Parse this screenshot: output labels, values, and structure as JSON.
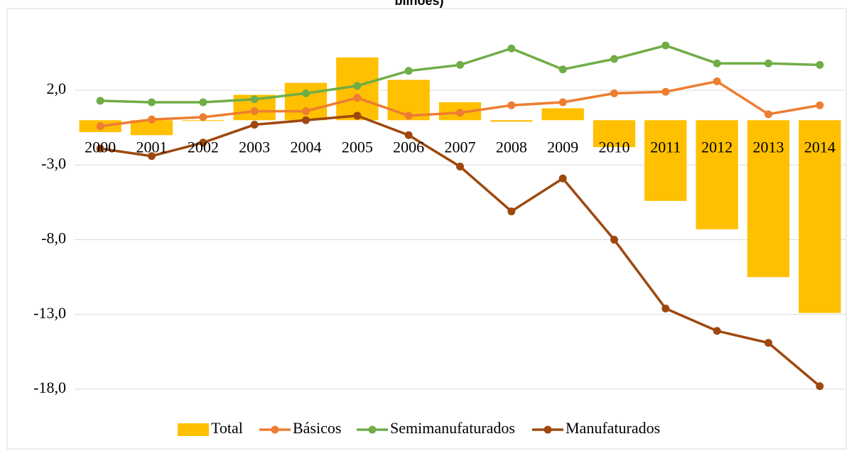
{
  "chart_data": {
    "type": "combo",
    "title": "bilhões)",
    "categories": [
      "2000",
      "2001",
      "2002",
      "2003",
      "2004",
      "2005",
      "2006",
      "2007",
      "2008",
      "2009",
      "2010",
      "2011",
      "2012",
      "2013",
      "2014"
    ],
    "series": [
      {
        "name": "Total",
        "type": "bar",
        "color": "#ffc000",
        "values": [
          -0.8,
          -1.0,
          -0.05,
          1.7,
          2.5,
          4.2,
          2.7,
          1.2,
          -0.1,
          0.8,
          -1.8,
          -5.4,
          -7.3,
          -10.5,
          -12.9
        ]
      },
      {
        "name": "Básicos",
        "type": "line",
        "color": "#ed7d31",
        "values": [
          -0.4,
          0.05,
          0.2,
          0.6,
          0.6,
          1.5,
          0.3,
          0.5,
          1.0,
          1.2,
          1.8,
          1.9,
          2.6,
          0.4,
          1.0
        ]
      },
      {
        "name": "Semimanufaturados",
        "type": "line",
        "color": "#70ad47",
        "values": [
          1.3,
          1.2,
          1.2,
          1.4,
          1.8,
          2.3,
          3.3,
          3.7,
          4.8,
          3.4,
          4.1,
          5.0,
          3.8,
          3.8,
          3.7
        ]
      },
      {
        "name": "Manufaturados",
        "type": "line",
        "color": "#9e480e",
        "values": [
          -1.9,
          -2.4,
          -1.5,
          -0.3,
          0.0,
          0.3,
          -1.0,
          -3.1,
          -6.1,
          -3.9,
          -8.0,
          -12.6,
          -14.1,
          -14.9,
          -17.8
        ]
      }
    ],
    "ylim": [
      -19,
      6
    ],
    "yticks": [
      {
        "value": 2,
        "label": "2,0"
      },
      {
        "value": -3,
        "label": "-3,0"
      },
      {
        "value": -8,
        "label": "-8,0"
      },
      {
        "value": -13,
        "label": "-13,0"
      },
      {
        "value": -18,
        "label": "-18,0"
      }
    ],
    "grid": true,
    "legend": "bottom"
  }
}
